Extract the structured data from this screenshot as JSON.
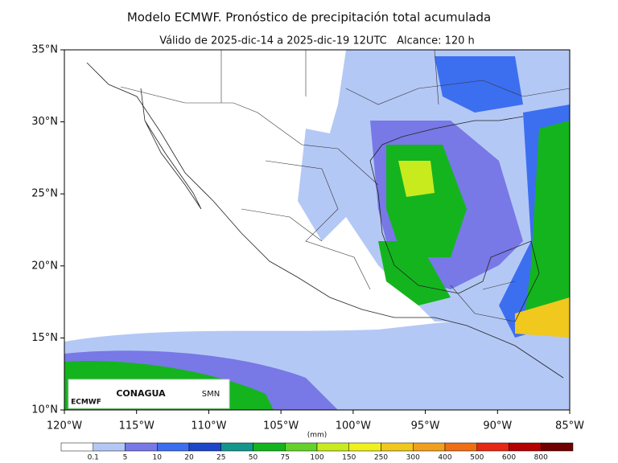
{
  "header": {
    "title": "Modelo ECMWF. Pronóstico de precipitación total acumulada",
    "subtitle": "Válido de 2025-dic-14 a 2025-dic-19 12UTC   Alcance: 120 h"
  },
  "map": {
    "lat_labels": [
      "35°N",
      "30°N",
      "25°N",
      "20°N",
      "15°N",
      "10°N"
    ],
    "lon_labels": [
      "120°W",
      "115°W",
      "110°W",
      "105°W",
      "100°W",
      "95°W",
      "90°W",
      "85°W"
    ]
  },
  "colorbar": {
    "unit": "(mm)",
    "levels": [
      0.1,
      5,
      10,
      20,
      25,
      50,
      75,
      100,
      150,
      250,
      300,
      400,
      500,
      600,
      800
    ],
    "colors": [
      "#ffffff",
      "#b4c8f5",
      "#7878e6",
      "#3c6ef0",
      "#1e46c8",
      "#14968c",
      "#14b41e",
      "#64d228",
      "#c8eb1e",
      "#f0f01e",
      "#f0c81e",
      "#f0a01e",
      "#f06e14",
      "#e62814",
      "#b40000",
      "#6e0000"
    ]
  },
  "logos": [
    "ECMWF",
    "CONAGUA",
    "SMN"
  ]
}
